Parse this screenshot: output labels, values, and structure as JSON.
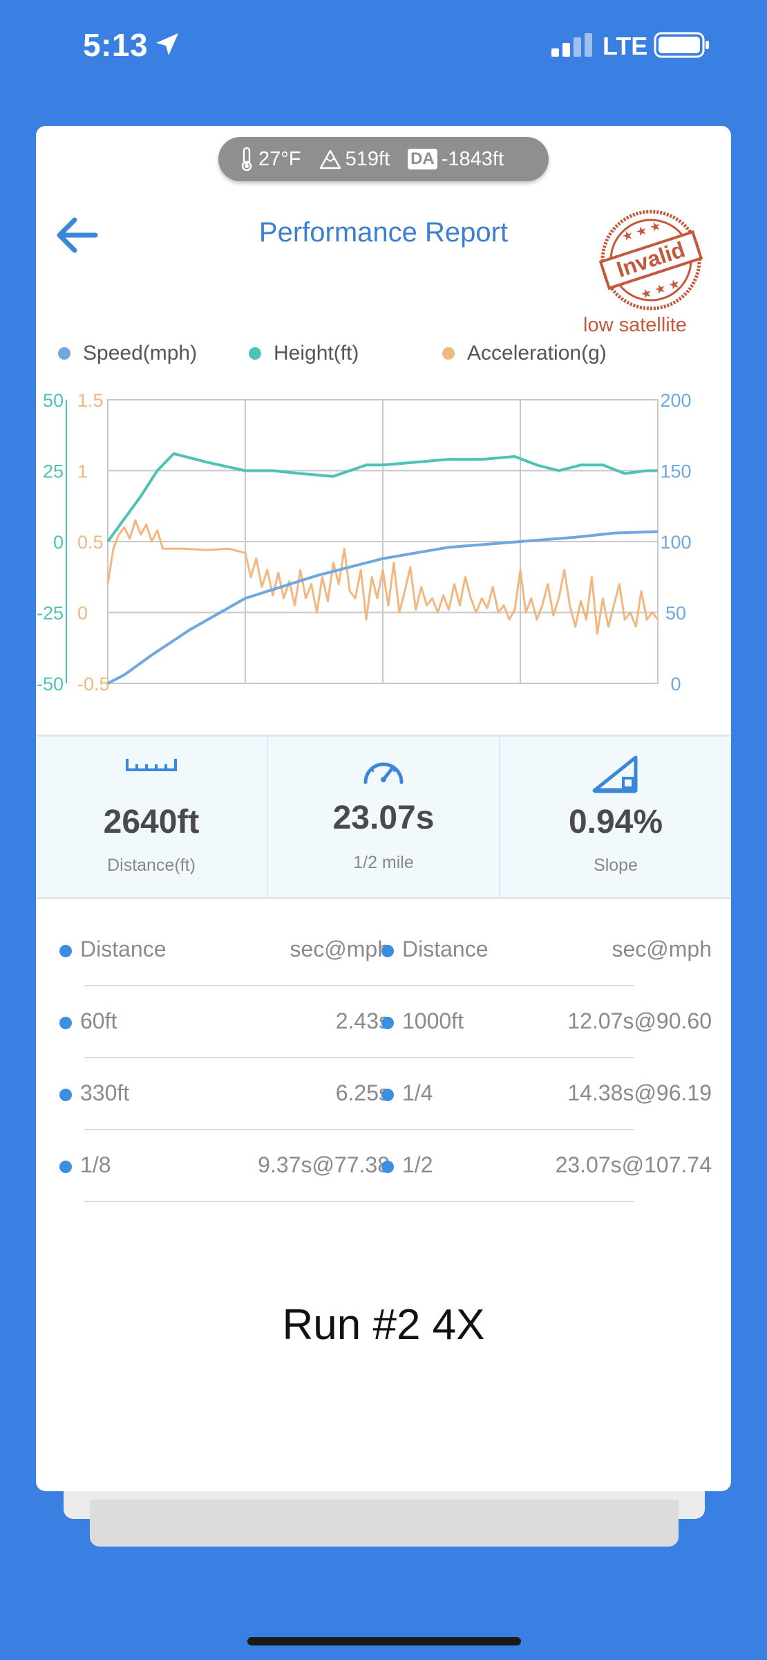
{
  "status_bar": {
    "time": "5:13",
    "network": "LTE"
  },
  "card": {
    "conditions": {
      "temperature": "27°F",
      "elevation": "519ft",
      "da_label": "DA",
      "density_altitude": "-1843ft"
    },
    "title": "Performance Report",
    "stamp": {
      "text": "Invalid",
      "note": "low satellite"
    },
    "legend": [
      {
        "label": "Speed(mph)",
        "color": "#6fa8e0"
      },
      {
        "label": "Height(ft)",
        "color": "#4ec2b7"
      },
      {
        "label": "Acceleration(g)",
        "color": "#f1b77f"
      }
    ],
    "stats": [
      {
        "icon": "ruler-icon",
        "value": "2640ft",
        "label": "Distance(ft)"
      },
      {
        "icon": "speedometer-icon",
        "value": "23.07s",
        "label": "1/2 mile"
      },
      {
        "icon": "slope-icon",
        "value": "0.94%",
        "label": "Slope"
      }
    ],
    "splits_header": {
      "left_col1": "Distance",
      "left_col2": "sec@mph",
      "right_col1": "Distance",
      "right_col2": "sec@mph"
    },
    "splits": [
      {
        "l_dist": "60ft",
        "l_val": "2.43s",
        "r_dist": "1000ft",
        "r_val": "12.07s@90.60"
      },
      {
        "l_dist": "330ft",
        "l_val": "6.25s",
        "r_dist": "1/4",
        "r_val": "14.38s@96.19"
      },
      {
        "l_dist": "1/8",
        "l_val": "9.37s@77.38",
        "r_dist": "1/2",
        "r_val": "23.07s@107.74"
      }
    ],
    "run_title": "Run #2 4X"
  },
  "chart_data": {
    "type": "line",
    "axes": {
      "height_ticks": [
        "50",
        "25",
        "0",
        "-25",
        "-50"
      ],
      "accel_ticks": [
        "1.5",
        "1",
        "0.5",
        "0",
        "-0.5"
      ],
      "speed_ticks": [
        "200",
        "150",
        "100",
        "50",
        "0"
      ],
      "height_range": [
        -50,
        50
      ],
      "accel_range": [
        -0.5,
        1.5
      ],
      "speed_range": [
        0,
        200
      ]
    },
    "grid": true,
    "x_range": [
      0,
      100
    ],
    "series": [
      {
        "name": "Speed(mph)",
        "axis": "speed",
        "color": "#6fa8e0",
        "x": [
          0,
          3,
          8,
          15,
          25,
          38,
          50,
          62,
          75,
          85,
          92,
          100
        ],
        "y": [
          0,
          6,
          20,
          38,
          60,
          76,
          88,
          96,
          100,
          103,
          106,
          107
        ]
      },
      {
        "name": "Height(ft)",
        "axis": "height",
        "color": "#4ec2b7",
        "x": [
          0,
          3,
          6,
          9,
          12,
          18,
          25,
          30,
          35,
          41,
          44,
          47,
          50,
          56,
          62,
          68,
          74,
          78,
          82,
          86,
          90,
          94,
          98,
          100
        ],
        "y": [
          0,
          8,
          16,
          25,
          31,
          28,
          25,
          25,
          24,
          23,
          25,
          27,
          27,
          28,
          29,
          29,
          30,
          27,
          25,
          27,
          27,
          24,
          25,
          25
        ]
      },
      {
        "name": "Acceleration(g)",
        "axis": "accel",
        "color": "#f1b77f",
        "x": [
          0,
          1,
          2,
          3,
          4,
          5,
          6,
          7,
          8,
          9,
          10,
          12,
          14,
          18,
          22,
          25,
          26,
          27,
          28,
          29,
          30,
          31,
          32,
          33,
          34,
          35,
          36,
          37,
          38,
          39,
          40,
          41,
          42,
          43,
          44,
          45,
          46,
          47,
          48,
          49,
          50,
          51,
          52,
          53,
          54,
          55,
          56,
          57,
          58,
          59,
          60,
          61,
          62,
          63,
          64,
          65,
          66,
          67,
          68,
          69,
          70,
          71,
          72,
          73,
          74,
          75,
          76,
          77,
          78,
          79,
          80,
          81,
          82,
          83,
          84,
          85,
          86,
          87,
          88,
          89,
          90,
          91,
          92,
          93,
          94,
          95,
          96,
          97,
          98,
          99,
          100
        ],
        "y": [
          0.2,
          0.45,
          0.55,
          0.6,
          0.52,
          0.65,
          0.55,
          0.62,
          0.5,
          0.58,
          0.45,
          0.45,
          0.45,
          0.44,
          0.45,
          0.42,
          0.25,
          0.38,
          0.18,
          0.3,
          0.12,
          0.28,
          0.1,
          0.22,
          0.05,
          0.3,
          0.1,
          0.2,
          0.0,
          0.25,
          0.08,
          0.35,
          0.2,
          0.45,
          0.15,
          0.1,
          0.3,
          -0.05,
          0.25,
          0.1,
          0.3,
          0.05,
          0.35,
          0.0,
          0.15,
          0.32,
          0.02,
          0.18,
          0.05,
          0.1,
          0.0,
          0.12,
          0.02,
          0.2,
          0.05,
          0.25,
          0.1,
          0.0,
          0.1,
          0.03,
          0.18,
          0.0,
          0.05,
          -0.05,
          0.02,
          0.3,
          0.0,
          0.1,
          -0.05,
          0.05,
          0.2,
          -0.02,
          0.1,
          0.3,
          0.05,
          -0.1,
          0.08,
          -0.05,
          0.25,
          -0.15,
          0.1,
          -0.1,
          0.05,
          0.2,
          -0.05,
          0.0,
          -0.1,
          0.15,
          -0.05,
          0.0,
          -0.05
        ]
      }
    ]
  }
}
